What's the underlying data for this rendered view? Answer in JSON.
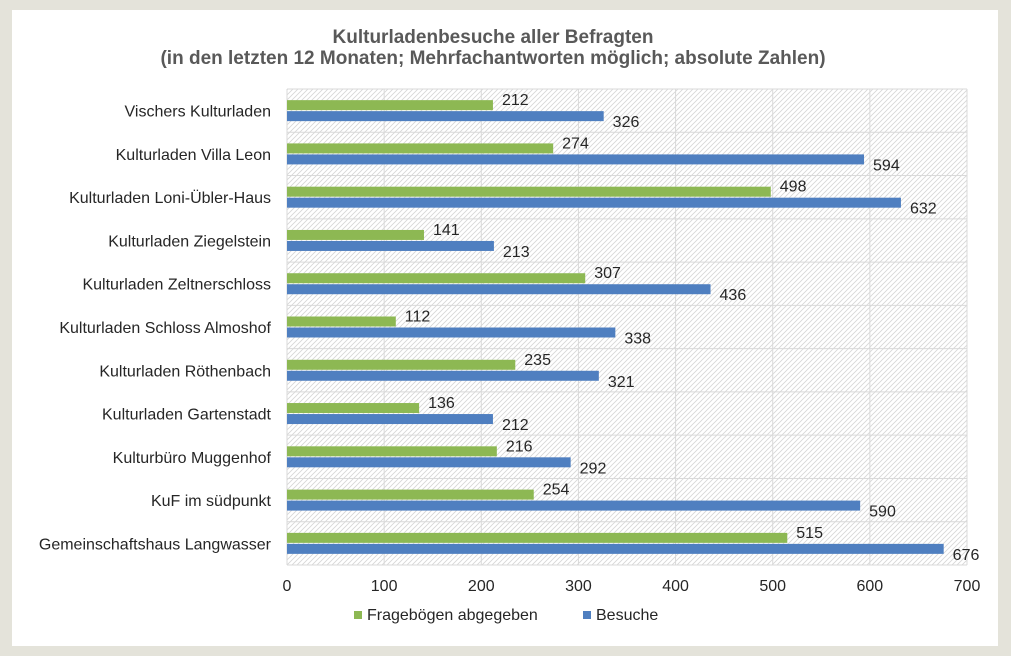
{
  "chart_data": {
    "type": "bar",
    "orientation": "horizontal",
    "title": "Kulturladenbesuche aller Befragten",
    "subtitle": "(in den letzten 12 Monaten; Mehrfachantworten möglich; absolute Zahlen)",
    "xlabel": "",
    "ylabel": "",
    "xlim": [
      0,
      700
    ],
    "ticks": [
      "0",
      "100",
      "200",
      "300",
      "400",
      "500",
      "600",
      "700"
    ],
    "grid": true,
    "legend_position": "bottom",
    "categories": [
      "Vischers Kulturladen",
      "Kulturladen Villa Leon",
      "Kulturladen Loni-Übler-Haus",
      "Kulturladen Ziegelstein",
      "Kulturladen Zeltnerschloss",
      "Kulturladen Schloss Almoshof",
      "Kulturladen Röthenbach",
      "Kulturladen Gartenstadt",
      "Kulturbüro Muggenhof",
      "KuF im südpunkt",
      "Gemeinschaftshaus Langwasser"
    ],
    "series": [
      {
        "name": "Fragebögen abgegeben",
        "color": "#8db853",
        "values": [
          212,
          274,
          498,
          141,
          307,
          112,
          235,
          136,
          216,
          254,
          515
        ]
      },
      {
        "name": "Besuche",
        "color": "#4f7fc0",
        "values": [
          326,
          594,
          632,
          213,
          436,
          338,
          321,
          212,
          292,
          590,
          676
        ]
      }
    ]
  }
}
